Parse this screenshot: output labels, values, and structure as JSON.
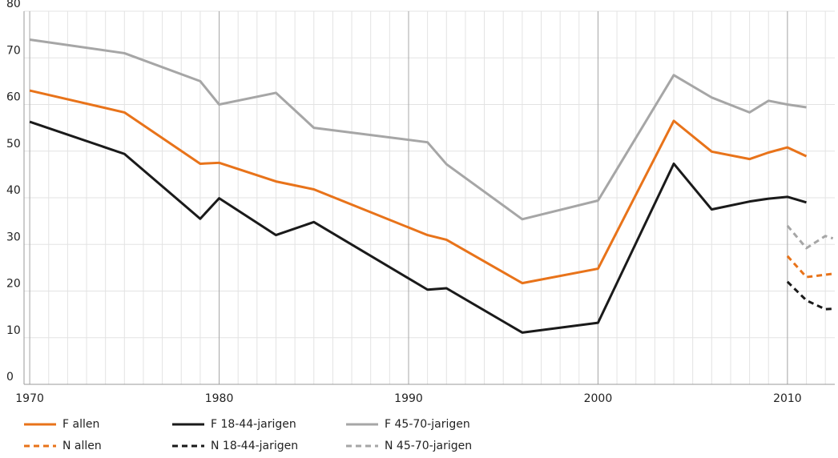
{
  "chart_data": {
    "type": "line",
    "xlim": [
      1969.7,
      2012.5
    ],
    "xticks": [
      1970,
      1980,
      1990,
      2000,
      2010
    ],
    "minor_grid_step": 1,
    "ylim": [
      0,
      80
    ],
    "yticks": [
      0,
      10,
      20,
      30,
      40,
      50,
      60,
      70,
      80
    ],
    "grid": true,
    "series": [
      {
        "name": "F allen",
        "color": "#e8731a",
        "dash": false,
        "x": [
          1970,
          1975,
          1979,
          1980,
          1983,
          1985,
          1991,
          1992,
          1996,
          2000,
          2004,
          2006,
          2008,
          2009,
          2010,
          2011
        ],
        "values": [
          63,
          58.3,
          47.3,
          47.5,
          43.5,
          41.8,
          32,
          31,
          21.7,
          24.8,
          56.5,
          49.9,
          48.3,
          49.7,
          50.8,
          48.9
        ]
      },
      {
        "name": "F 18-44-jarigen",
        "color": "#1a1a1a",
        "dash": false,
        "x": [
          1970,
          1975,
          1979,
          1980,
          1983,
          1985,
          1991,
          1992,
          1996,
          2000,
          2004,
          2006,
          2008,
          2009,
          2010,
          2011
        ],
        "values": [
          56.3,
          49.4,
          35.5,
          39.9,
          32,
          34.8,
          20.3,
          20.6,
          11.1,
          13.2,
          47.3,
          37.5,
          39.2,
          39.8,
          40.2,
          39
        ]
      },
      {
        "name": "F 45-70-jarigen",
        "color": "#a6a6a6",
        "dash": false,
        "x": [
          1970,
          1975,
          1979,
          1980,
          1983,
          1985,
          1991,
          1992,
          1996,
          2000,
          2004,
          2006,
          2008,
          2009,
          2010,
          2011
        ],
        "values": [
          73.9,
          71,
          65,
          60,
          62.5,
          55,
          51.9,
          47.2,
          35.4,
          39.4,
          66.3,
          61.5,
          58.3,
          60.8,
          60,
          59.4
        ]
      },
      {
        "name": "N allen",
        "color": "#e8731a",
        "dash": true,
        "x": [
          2010,
          2011,
          2012,
          2012.4
        ],
        "values": [
          27.5,
          23,
          23.5,
          23.7
        ]
      },
      {
        "name": "N 18-44-jarigen",
        "color": "#1a1a1a",
        "dash": true,
        "x": [
          2010,
          2011,
          2012,
          2012.4
        ],
        "values": [
          22,
          18,
          16.1,
          16.2
        ]
      },
      {
        "name": "N 45-70-jarigen",
        "color": "#a6a6a6",
        "dash": true,
        "x": [
          2010,
          2011,
          2012,
          2012.4
        ],
        "values": [
          34,
          29.2,
          31.8,
          31.3
        ]
      }
    ]
  }
}
